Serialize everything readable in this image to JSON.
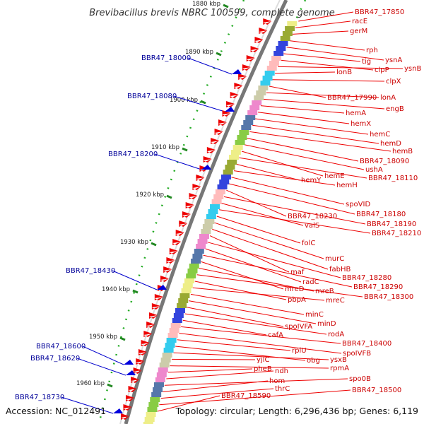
{
  "title": "Brevibacillus brevis NBRC 100599, complete genome",
  "footer": {
    "accession": "Accession: NC_012491",
    "topology": "Topology: circular; Length: 6,296,436 bp; Genes: 6,119"
  },
  "colors": {
    "forward_gene": "#ee0000",
    "left_label": "#000099",
    "right_label": "#cc0000",
    "backbone": "#777777",
    "tick": "#228822"
  },
  "ruler": [
    {
      "label": "1880 kbp"
    },
    {
      "label": "1890 kbp"
    },
    {
      "label": "1900 kbp"
    },
    {
      "label": "1910 kbp"
    },
    {
      "label": "1920 kbp"
    },
    {
      "label": "1930 kbp"
    },
    {
      "label": "1940 kbp"
    },
    {
      "label": "1950 kbp"
    },
    {
      "label": "1960 kbp"
    }
  ],
  "right_labels": [
    "BBR47_17850",
    "racE",
    "gerM",
    "rph",
    "ysnA",
    "tig",
    "clpP",
    "ysnB",
    "lonB",
    "clpX",
    "BBR47_17990",
    "lonA",
    "engB",
    "hemA",
    "hemX",
    "hemC",
    "hemD",
    "hemB",
    "BBR47_18090",
    "ushA",
    "hemE",
    "BBR47_18110",
    "hemY",
    "hemH",
    "spoVID",
    "BBR47_18180",
    "BBR47_18230",
    "BBR47_18190",
    "valS",
    "BBR47_18210",
    "folC",
    "murC",
    "fabHB",
    "maf",
    "BBR47_18280",
    "radC",
    "BBR47_18290",
    "mreD",
    "mreB",
    "BBR47_18300",
    "pbpA",
    "mreC",
    "minC",
    "minD",
    "spoIVFA",
    "rodA",
    "cafA",
    "BBR47_18400",
    "spoIVFB",
    "rplU",
    "obg",
    "ysxB",
    "yjlC",
    "rpmA",
    "pheB",
    "ndh",
    "spo0B",
    "hom",
    "thrC",
    "BBR47_18500",
    "BBR47_18590"
  ],
  "left_labels": [
    "BBR47_18000",
    "BBR47_18080",
    "BBR47_18200",
    "BBR47_18430",
    "BBR47_18600",
    "BBR47_18620",
    "BBR47_18730"
  ]
}
